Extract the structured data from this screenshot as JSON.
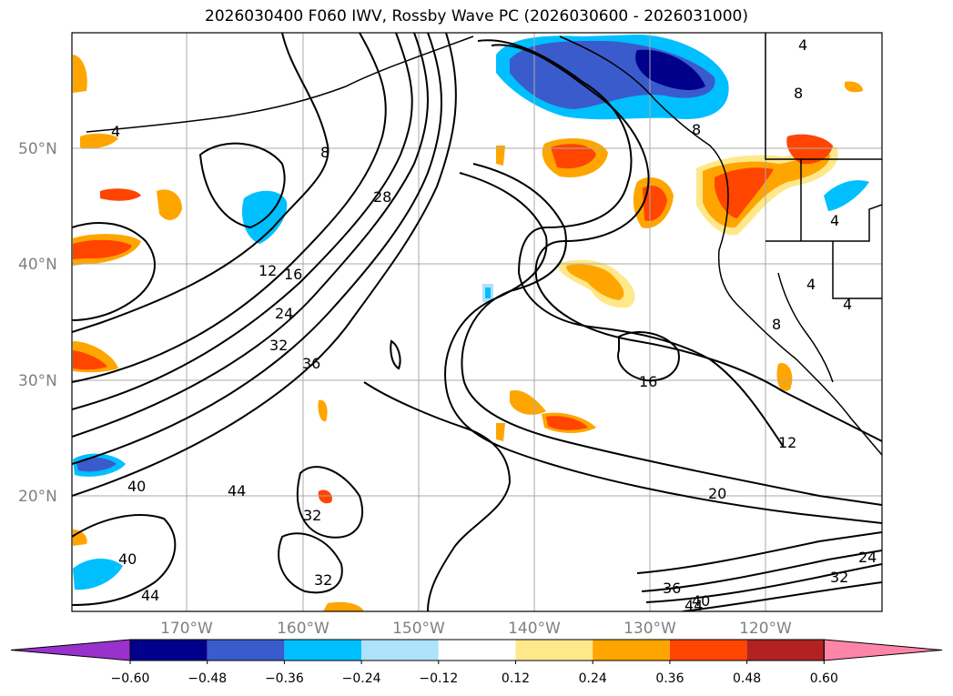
{
  "title": "2026030400 F060 IWV, Rossby Wave PC (2026030600 - 2026031000)",
  "map": {
    "lat_labels": [
      "50°N",
      "40°N",
      "30°N",
      "20°N"
    ],
    "lon_labels": [
      "170°W",
      "160°W",
      "150°W",
      "140°W",
      "130°W",
      "120°W"
    ],
    "contour_labels": [
      "4",
      "8",
      "8",
      "8",
      "4",
      "4",
      "4",
      "4",
      "8",
      "28",
      "12",
      "16",
      "24",
      "32",
      "36",
      "16",
      "12",
      "20",
      "40",
      "44",
      "32",
      "32",
      "40",
      "44",
      "36",
      "40",
      "44",
      "24",
      "32"
    ]
  },
  "colorbar": {
    "ticks": [
      "−0.60",
      "−0.48",
      "−0.36",
      "−0.24",
      "−0.12",
      "0.12",
      "0.24",
      "0.36",
      "0.48",
      "0.60"
    ],
    "colors": [
      "#9932cc",
      "#00008b",
      "#3a5bcc",
      "#00bfff",
      "#aee2fa",
      "#ffffff",
      "#ffe88a",
      "#ffa500",
      "#ff4500",
      "#b22222",
      "#ff85a8"
    ]
  }
}
